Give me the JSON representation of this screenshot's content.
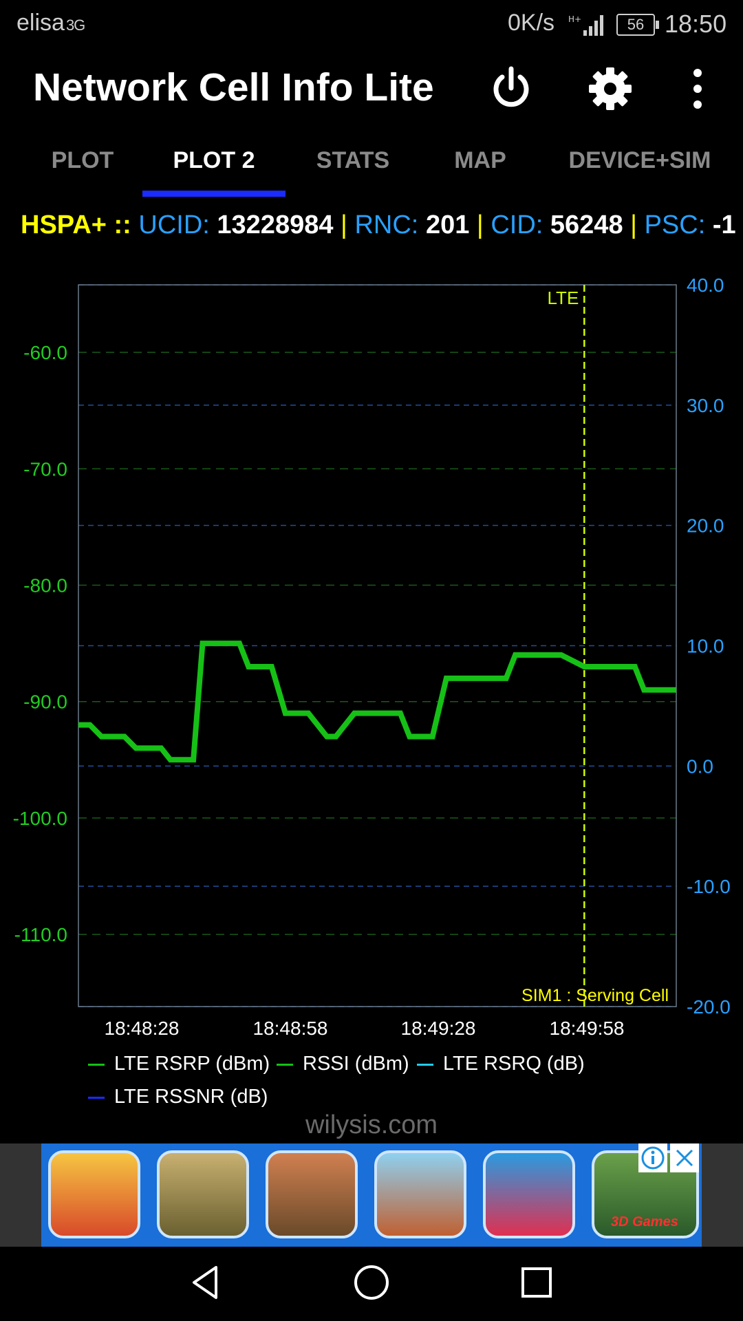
{
  "status_bar": {
    "carrier": "elisa",
    "carrier_badge": "3G",
    "data_rate": "0K/s",
    "battery": "56",
    "time": "18:50"
  },
  "app_bar": {
    "title": "Network Cell Info Lite",
    "icons": [
      "power-icon",
      "gear-icon",
      "more-vert-icon"
    ]
  },
  "tabs": [
    {
      "label": "PLOT",
      "active": false
    },
    {
      "label": "PLOT 2",
      "active": true
    },
    {
      "label": "STATS",
      "active": false
    },
    {
      "label": "MAP",
      "active": false
    },
    {
      "label": "DEVICE+SIM",
      "active": false
    }
  ],
  "cell_info": {
    "tech": "HSPA+",
    "sep0": "::",
    "ucid_label": "UCID:",
    "ucid": "13228984",
    "rnc_label": "RNC:",
    "rnc": "201",
    "cid_label": "CID:",
    "cid": "56248",
    "psc_label": "PSC:",
    "psc": "-1",
    "divider": "|"
  },
  "chart_data": {
    "type": "line",
    "left_axis": {
      "ticks": [
        "-60.0",
        "-70.0",
        "-80.0",
        "-90.0",
        "-100.0",
        "-110.0"
      ],
      "values": [
        -60,
        -70,
        -80,
        -90,
        -100,
        -110
      ],
      "range": [
        -116.2,
        -54.2
      ],
      "color": "#22cc22"
    },
    "right_axis": {
      "ticks": [
        "40.0",
        "30.0",
        "20.0",
        "10.0",
        "0.0",
        "-10.0",
        "-20.0"
      ],
      "values": [
        40,
        30,
        20,
        10,
        0,
        -10,
        -20
      ],
      "range": [
        -20,
        40
      ],
      "color": "#2aa0ff"
    },
    "x_ticks": [
      "18:48:28",
      "18:48:58",
      "18:49:28",
      "18:49:58"
    ],
    "marker_label": "LTE",
    "marker_color": "#ccff00",
    "footer_label": "SIM1 : Serving Cell",
    "series": [
      {
        "name": "LTE RSRP (dBm)",
        "color": "#16c016",
        "x": [
          0,
          2.5,
          5,
          10,
          12.5,
          18,
          20,
          25,
          27,
          30,
          35,
          37,
          42,
          45,
          50,
          54,
          56,
          60,
          70,
          72,
          77,
          80,
          93,
          95,
          103,
          105,
          110,
          113,
          121,
          123,
          129,
          130
        ],
        "y": [
          -92,
          -92,
          -93,
          -93,
          -94,
          -94,
          -95,
          -95,
          -85,
          -85,
          -85,
          -87,
          -87,
          -91,
          -91,
          -93,
          -93,
          -91,
          -91,
          -93,
          -93,
          -88,
          -88,
          -86,
          -86,
          -86,
          -87,
          -87,
          -87,
          -89,
          -89,
          -89
        ]
      },
      {
        "name": "RSSI (dBm)",
        "color": "#16c016",
        "x": [],
        "y": []
      },
      {
        "name": "LTE RSRQ (dB)",
        "color": "#22ccee",
        "x": [],
        "y": []
      },
      {
        "name": "LTE RSSNR (dB)",
        "color": "#1a2cff",
        "x": [],
        "y": []
      }
    ],
    "marker_x": 110
  },
  "legend": [
    {
      "label": "LTE RSRP (dBm)",
      "color": "#16c016"
    },
    {
      "label": "RSSI (dBm)",
      "color": "#16c016"
    },
    {
      "label": "LTE RSRQ (dB)",
      "color": "#22ccee"
    },
    {
      "label": "LTE RSSNR (dB)",
      "color": "#1a2cff"
    }
  ],
  "watermark": "wilysis.com",
  "ad": {
    "tiles": [
      "subway-surfers-game-icon",
      "tank-game-icon",
      "soldier-game-icon",
      "platformer-game-icon",
      "candy-game-icon",
      "football-game-icon"
    ],
    "tile_caption": "3D Games"
  },
  "nav_bar": {
    "icons": [
      "back-icon",
      "home-icon",
      "recents-icon"
    ]
  }
}
